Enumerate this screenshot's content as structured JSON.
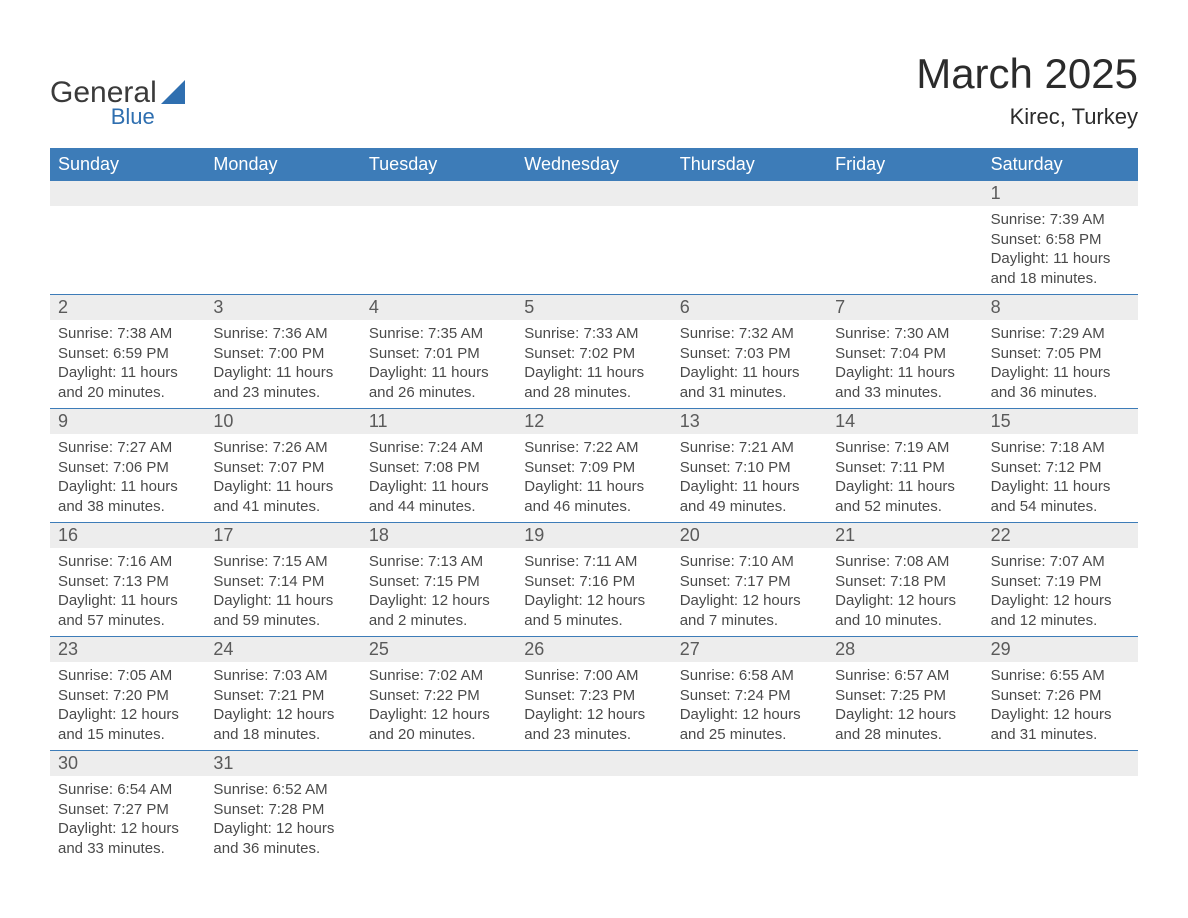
{
  "brand": {
    "name_a": "General",
    "name_b": "Blue",
    "name_a_color": "#3a3a3a",
    "name_b_color": "#2f6fb0",
    "sail_color": "#2f6fb0"
  },
  "title": {
    "main": "March 2025",
    "sub": "Kirec, Turkey",
    "main_fontsize": 42,
    "sub_fontsize": 22
  },
  "colors": {
    "header_bg": "#3d7cb8",
    "header_text": "#ffffff",
    "band_bg": "#ededed",
    "rule": "#3d7cb8",
    "body_text": "#4a4a4a",
    "daynum_text": "#5a5a5a",
    "page_bg": "#ffffff"
  },
  "weekdays": [
    "Sunday",
    "Monday",
    "Tuesday",
    "Wednesday",
    "Thursday",
    "Friday",
    "Saturday"
  ],
  "weeks": [
    [
      {
        "n": "",
        "sunrise": "",
        "sunset": "",
        "daylight": ""
      },
      {
        "n": "",
        "sunrise": "",
        "sunset": "",
        "daylight": ""
      },
      {
        "n": "",
        "sunrise": "",
        "sunset": "",
        "daylight": ""
      },
      {
        "n": "",
        "sunrise": "",
        "sunset": "",
        "daylight": ""
      },
      {
        "n": "",
        "sunrise": "",
        "sunset": "",
        "daylight": ""
      },
      {
        "n": "",
        "sunrise": "",
        "sunset": "",
        "daylight": ""
      },
      {
        "n": "1",
        "sunrise": "Sunrise: 7:39 AM",
        "sunset": "Sunset: 6:58 PM",
        "daylight": "Daylight: 11 hours and 18 minutes."
      }
    ],
    [
      {
        "n": "2",
        "sunrise": "Sunrise: 7:38 AM",
        "sunset": "Sunset: 6:59 PM",
        "daylight": "Daylight: 11 hours and 20 minutes."
      },
      {
        "n": "3",
        "sunrise": "Sunrise: 7:36 AM",
        "sunset": "Sunset: 7:00 PM",
        "daylight": "Daylight: 11 hours and 23 minutes."
      },
      {
        "n": "4",
        "sunrise": "Sunrise: 7:35 AM",
        "sunset": "Sunset: 7:01 PM",
        "daylight": "Daylight: 11 hours and 26 minutes."
      },
      {
        "n": "5",
        "sunrise": "Sunrise: 7:33 AM",
        "sunset": "Sunset: 7:02 PM",
        "daylight": "Daylight: 11 hours and 28 minutes."
      },
      {
        "n": "6",
        "sunrise": "Sunrise: 7:32 AM",
        "sunset": "Sunset: 7:03 PM",
        "daylight": "Daylight: 11 hours and 31 minutes."
      },
      {
        "n": "7",
        "sunrise": "Sunrise: 7:30 AM",
        "sunset": "Sunset: 7:04 PM",
        "daylight": "Daylight: 11 hours and 33 minutes."
      },
      {
        "n": "8",
        "sunrise": "Sunrise: 7:29 AM",
        "sunset": "Sunset: 7:05 PM",
        "daylight": "Daylight: 11 hours and 36 minutes."
      }
    ],
    [
      {
        "n": "9",
        "sunrise": "Sunrise: 7:27 AM",
        "sunset": "Sunset: 7:06 PM",
        "daylight": "Daylight: 11 hours and 38 minutes."
      },
      {
        "n": "10",
        "sunrise": "Sunrise: 7:26 AM",
        "sunset": "Sunset: 7:07 PM",
        "daylight": "Daylight: 11 hours and 41 minutes."
      },
      {
        "n": "11",
        "sunrise": "Sunrise: 7:24 AM",
        "sunset": "Sunset: 7:08 PM",
        "daylight": "Daylight: 11 hours and 44 minutes."
      },
      {
        "n": "12",
        "sunrise": "Sunrise: 7:22 AM",
        "sunset": "Sunset: 7:09 PM",
        "daylight": "Daylight: 11 hours and 46 minutes."
      },
      {
        "n": "13",
        "sunrise": "Sunrise: 7:21 AM",
        "sunset": "Sunset: 7:10 PM",
        "daylight": "Daylight: 11 hours and 49 minutes."
      },
      {
        "n": "14",
        "sunrise": "Sunrise: 7:19 AM",
        "sunset": "Sunset: 7:11 PM",
        "daylight": "Daylight: 11 hours and 52 minutes."
      },
      {
        "n": "15",
        "sunrise": "Sunrise: 7:18 AM",
        "sunset": "Sunset: 7:12 PM",
        "daylight": "Daylight: 11 hours and 54 minutes."
      }
    ],
    [
      {
        "n": "16",
        "sunrise": "Sunrise: 7:16 AM",
        "sunset": "Sunset: 7:13 PM",
        "daylight": "Daylight: 11 hours and 57 minutes."
      },
      {
        "n": "17",
        "sunrise": "Sunrise: 7:15 AM",
        "sunset": "Sunset: 7:14 PM",
        "daylight": "Daylight: 11 hours and 59 minutes."
      },
      {
        "n": "18",
        "sunrise": "Sunrise: 7:13 AM",
        "sunset": "Sunset: 7:15 PM",
        "daylight": "Daylight: 12 hours and 2 minutes."
      },
      {
        "n": "19",
        "sunrise": "Sunrise: 7:11 AM",
        "sunset": "Sunset: 7:16 PM",
        "daylight": "Daylight: 12 hours and 5 minutes."
      },
      {
        "n": "20",
        "sunrise": "Sunrise: 7:10 AM",
        "sunset": "Sunset: 7:17 PM",
        "daylight": "Daylight: 12 hours and 7 minutes."
      },
      {
        "n": "21",
        "sunrise": "Sunrise: 7:08 AM",
        "sunset": "Sunset: 7:18 PM",
        "daylight": "Daylight: 12 hours and 10 minutes."
      },
      {
        "n": "22",
        "sunrise": "Sunrise: 7:07 AM",
        "sunset": "Sunset: 7:19 PM",
        "daylight": "Daylight: 12 hours and 12 minutes."
      }
    ],
    [
      {
        "n": "23",
        "sunrise": "Sunrise: 7:05 AM",
        "sunset": "Sunset: 7:20 PM",
        "daylight": "Daylight: 12 hours and 15 minutes."
      },
      {
        "n": "24",
        "sunrise": "Sunrise: 7:03 AM",
        "sunset": "Sunset: 7:21 PM",
        "daylight": "Daylight: 12 hours and 18 minutes."
      },
      {
        "n": "25",
        "sunrise": "Sunrise: 7:02 AM",
        "sunset": "Sunset: 7:22 PM",
        "daylight": "Daylight: 12 hours and 20 minutes."
      },
      {
        "n": "26",
        "sunrise": "Sunrise: 7:00 AM",
        "sunset": "Sunset: 7:23 PM",
        "daylight": "Daylight: 12 hours and 23 minutes."
      },
      {
        "n": "27",
        "sunrise": "Sunrise: 6:58 AM",
        "sunset": "Sunset: 7:24 PM",
        "daylight": "Daylight: 12 hours and 25 minutes."
      },
      {
        "n": "28",
        "sunrise": "Sunrise: 6:57 AM",
        "sunset": "Sunset: 7:25 PM",
        "daylight": "Daylight: 12 hours and 28 minutes."
      },
      {
        "n": "29",
        "sunrise": "Sunrise: 6:55 AM",
        "sunset": "Sunset: 7:26 PM",
        "daylight": "Daylight: 12 hours and 31 minutes."
      }
    ],
    [
      {
        "n": "30",
        "sunrise": "Sunrise: 6:54 AM",
        "sunset": "Sunset: 7:27 PM",
        "daylight": "Daylight: 12 hours and 33 minutes."
      },
      {
        "n": "31",
        "sunrise": "Sunrise: 6:52 AM",
        "sunset": "Sunset: 7:28 PM",
        "daylight": "Daylight: 12 hours and 36 minutes."
      },
      {
        "n": "",
        "sunrise": "",
        "sunset": "",
        "daylight": ""
      },
      {
        "n": "",
        "sunrise": "",
        "sunset": "",
        "daylight": ""
      },
      {
        "n": "",
        "sunrise": "",
        "sunset": "",
        "daylight": ""
      },
      {
        "n": "",
        "sunrise": "",
        "sunset": "",
        "daylight": ""
      },
      {
        "n": "",
        "sunrise": "",
        "sunset": "",
        "daylight": ""
      }
    ]
  ]
}
